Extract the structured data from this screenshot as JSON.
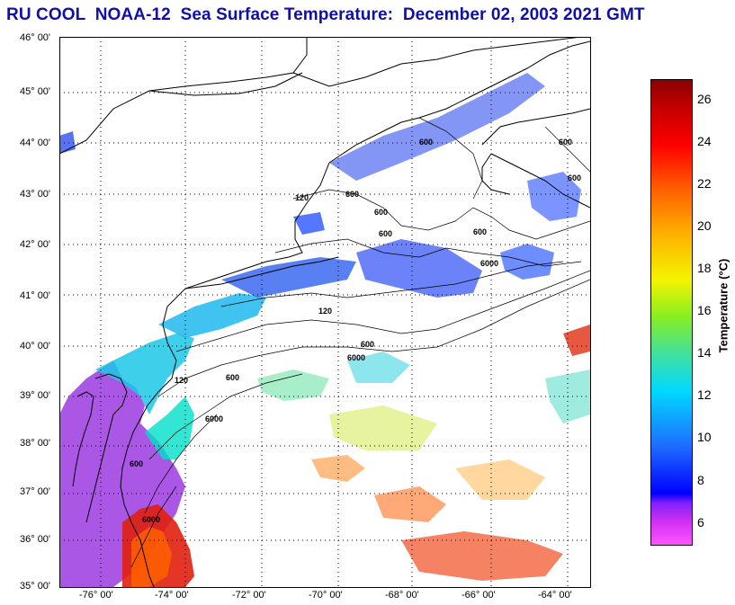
{
  "title": "RU COOL  NOAA-12  Sea Surface Temperature:  December 02, 2003 2021 GMT",
  "map": {
    "lat_labels": [
      "46° 00'",
      "45° 00'",
      "44° 00'",
      "43° 00'",
      "42° 00'",
      "41° 00'",
      "40° 00'",
      "39° 00'",
      "38° 00'",
      "37° 00'",
      "36° 00'",
      "35° 00'"
    ],
    "lon_labels": [
      "-76° 00'",
      "-74° 00'",
      "-72° 00'",
      "-70° 00'",
      "-68° 00'",
      "-66° 00'",
      "-64° 00'"
    ],
    "contour_labels": [
      "600",
      "600",
      "600",
      "600",
      "600",
      "600",
      "600",
      "120",
      "120",
      "120",
      "6000",
      "6000",
      "6000",
      "6000",
      "600",
      "600",
      "600"
    ],
    "lat_range": [
      35,
      46
    ],
    "lon_range": [
      -77,
      -63
    ]
  },
  "colorbar": {
    "title": "Temperature (°C)",
    "tick_labels": [
      "26",
      "24",
      "22",
      "20",
      "18",
      "16",
      "14",
      "12",
      "10",
      "8",
      "6"
    ],
    "range": [
      5,
      27
    ]
  }
}
